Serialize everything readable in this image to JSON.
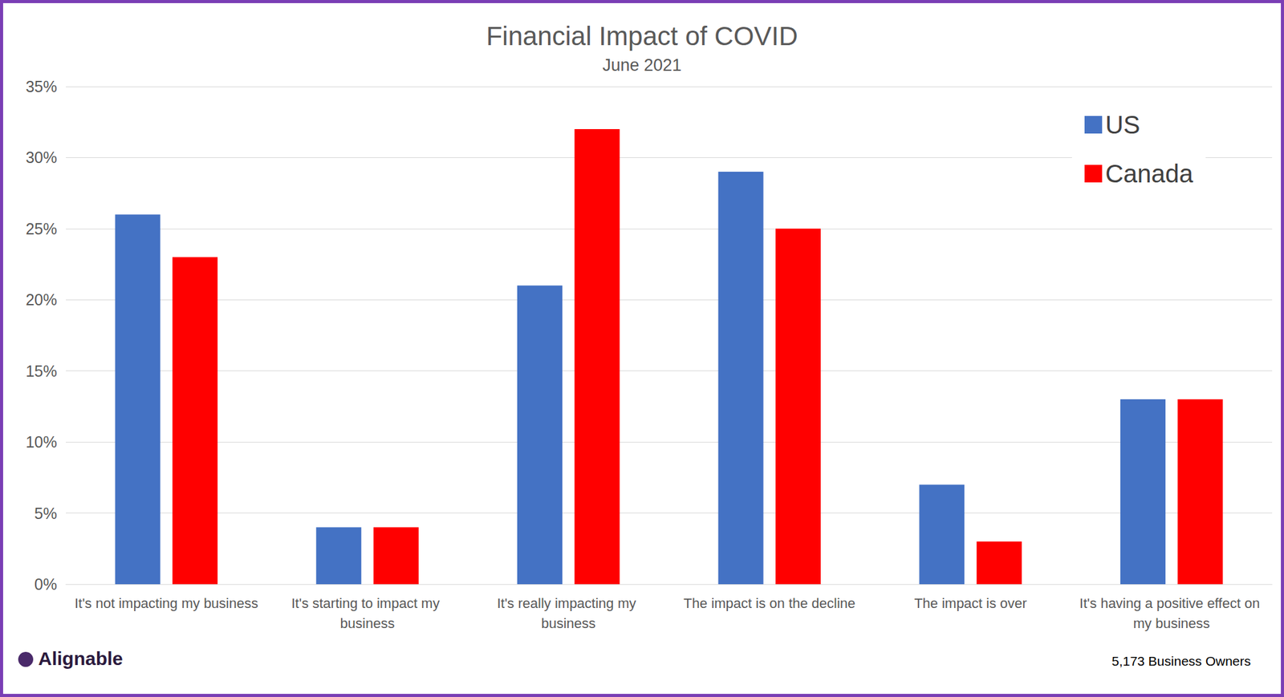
{
  "chart_data": {
    "type": "bar",
    "title": "Financial Impact of COVID",
    "subtitle": "June 2021",
    "categories": [
      "It's not impacting my business",
      "It's starting to impact my business",
      "It's really impacting my business",
      "The impact is on the decline",
      "The impact is over",
      "It's having a positive effect on my business"
    ],
    "series": [
      {
        "name": "US",
        "color": "#4472c4",
        "values": [
          26,
          4,
          21,
          29,
          7,
          13
        ]
      },
      {
        "name": "Canada",
        "color": "#ff0000",
        "values": [
          23,
          4,
          32,
          25,
          3,
          13
        ]
      }
    ],
    "ylim": [
      0,
      35
    ],
    "yticks": [
      {
        "value": 0,
        "label": "0%"
      },
      {
        "value": 5,
        "label": "5%"
      },
      {
        "value": 10,
        "label": "10%"
      },
      {
        "value": 15,
        "label": "15%"
      },
      {
        "value": 20,
        "label": "20%"
      },
      {
        "value": 25,
        "label": "25%"
      },
      {
        "value": 30,
        "label": "30%"
      },
      {
        "value": 35,
        "label": "35%"
      }
    ],
    "grid": true,
    "legend": "top-right",
    "annotations": [
      "Alignable",
      "5,173 Business Owners"
    ]
  }
}
